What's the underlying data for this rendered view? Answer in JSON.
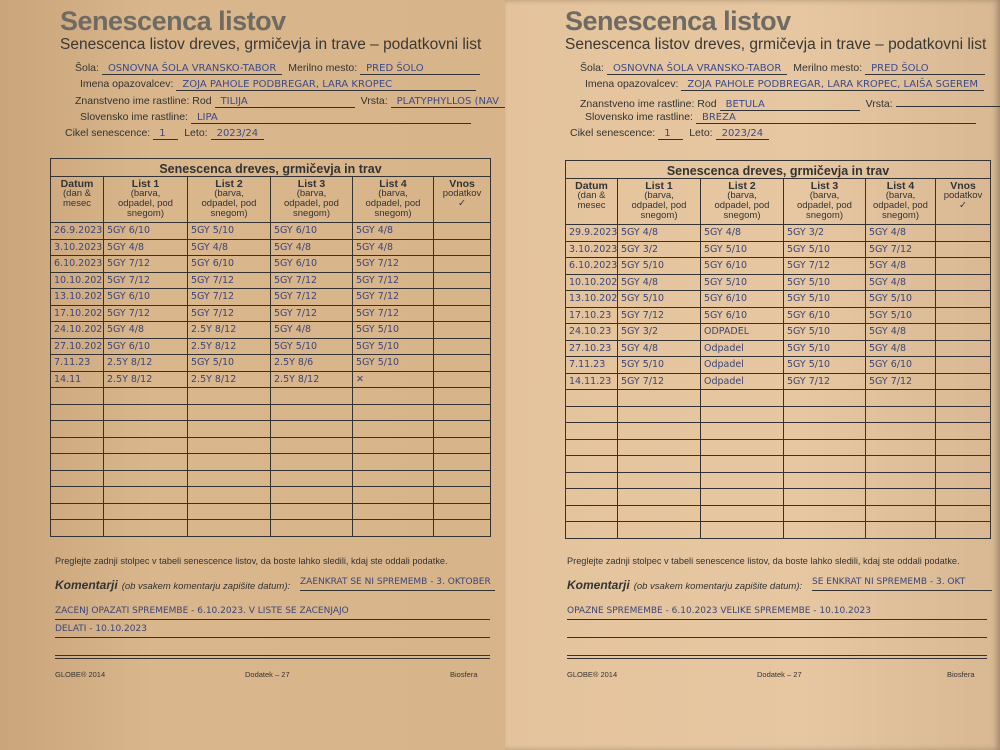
{
  "form": {
    "title": "Senescenca listov",
    "subtitle": "Senescenca listov dreves, grmičevja in trave – podatkovni list",
    "labels": {
      "sola": "Šola:",
      "merilno": "Merilno mesto:",
      "imena": "Imena opazovalcev:",
      "znanstveno": "Znanstveno ime rastline: Rod",
      "vrsta": "Vrsta:",
      "slovensko": "Slovensko ime rastline:",
      "cikel": "Cikel senescence:",
      "leto": "Leto:"
    },
    "table_caption": "Senescenca dreves, grmičevja in trav",
    "columns": [
      "Datum|(dan &|mesec",
      "List 1|(barva,|odpadel, pod|snegom)",
      "List 2|(barva,|odpadel, pod|snegom)",
      "List 3|(barva,|odpadel, pod|snegom)",
      "List 4|(barva,|odpadel, pod|snegom)",
      "Vnos|podatkov|✓"
    ],
    "instruction": "Preglejte zadnji stolpec v tabeli senescence listov, da boste lahko sledili, kdaj ste oddali podatke.",
    "komentarji_label": "Komentarji",
    "komentarji_hint": "(ob vsakem komentarju zapišite datum):",
    "footer": {
      "left": "GLOBE® 2014",
      "center": "Dodatek – 27",
      "right": "Biosfera"
    }
  },
  "sheets": [
    {
      "sola": "OSNOVNA ŠOLA VRANSKO-TABOR",
      "merilno": "PRED ŠOLO",
      "imena": "ZOJA PAHOLE PODBREGAR, LARA KROPEC",
      "rod": "TILIJA",
      "vrsta": "PLATYPHYLLOS (NAV",
      "slovensko": "LIPA",
      "cikel": "1",
      "leto": "2023/24",
      "rows": [
        [
          "26.9.2023",
          "5GY 6/10",
          "5GY 5/10",
          "5GY 6/10",
          "5GY 4/8",
          ""
        ],
        [
          "3.10.2023",
          "5GY 4/8",
          "5GY 4/8",
          "5GY 4/8",
          "5GY 4/8",
          ""
        ],
        [
          "6.10.2023",
          "5GY 7/12",
          "5GY 6/10",
          "5GY 6/10",
          "5GY 7/12",
          ""
        ],
        [
          "10.10.2023",
          "5GY 7/12",
          "5GY 7/12",
          "5GY 7/12",
          "5GY 7/12",
          ""
        ],
        [
          "13.10.2023",
          "5GY 6/10",
          "5GY 7/12",
          "5GY 7/12",
          "5GY 7/12",
          ""
        ],
        [
          "17.10.2023",
          "5GY 7/12",
          "5GY 7/12",
          "5GY 7/12",
          "5GY 7/12",
          ""
        ],
        [
          "24.10.2023",
          "5GY 4/8",
          "2.5Y 8/12",
          "5GY 4/8",
          "5GY 5/10",
          ""
        ],
        [
          "27.10.2023",
          "5GY 6/10",
          "2.5Y 8/12",
          "5GY 5/10",
          "5GY 5/10",
          ""
        ],
        [
          "7.11.23",
          "2.5Y 8/12",
          "5GY 5/10",
          "2.5Y 8/6",
          "5GY 5/10",
          ""
        ],
        [
          "14.11",
          "2.5Y 8/12",
          "2.5Y 8/12",
          "2.5Y 8/12",
          "✕",
          ""
        ]
      ],
      "komentar": [
        "ZAENKRAT ŠE NI SPREMEMB - 3. OKTOBER",
        "ZAČENJ OPAZATI SPREMEMBE - 6.10.2023. V LISTE SE ZAČENJAJO",
        "DELATI - 10.10.2023",
        ""
      ]
    },
    {
      "sola": "OSNOVNA ŠOLA VRANSKO-TABOR",
      "merilno": "PRED ŠOLO",
      "imena": "ZOJA PAHOLE PODBREGAR, LARA KROPEC, LAIŠA SGEREM",
      "rod": "BETULA",
      "vrsta": "",
      "slovensko": "BREZA",
      "cikel": "1",
      "leto": "2023/24",
      "rows": [
        [
          "29.9.2023",
          "5GY 4/8",
          "5GY 4/8",
          "5GY 3/2",
          "5GY 4/8",
          ""
        ],
        [
          "3.10.2023",
          "5GY 3/2",
          "5GY 5/10",
          "5GY 5/10",
          "5GY 7/12",
          ""
        ],
        [
          "6.10.2023",
          "5GY 5/10",
          "5GY 6/10",
          "5GY 7/12",
          "5GY 4/8",
          ""
        ],
        [
          "10.10.2023",
          "5GY 4/8",
          "5GY 5/10",
          "5GY 5/10",
          "5GY 4/8",
          ""
        ],
        [
          "13.10.2023",
          "5GY 5/10",
          "5GY 6/10",
          "5GY 5/10",
          "5GY 5/10",
          ""
        ],
        [
          "17.10.23",
          "5GY 7/12",
          "5GY 6/10",
          "5GY 6/10",
          "5GY 5/10",
          ""
        ],
        [
          "24.10.23",
          "5GY 3/2",
          "ODPADEL",
          "5GY 5/10",
          "5GY 4/8",
          ""
        ],
        [
          "27.10.23",
          "5GY 4/8",
          "Odpadel",
          "5GY 5/10",
          "5GY 4/8",
          ""
        ],
        [
          "7.11.23",
          "5GY 5/10",
          "Odpadel",
          "5GY 5/10",
          "5GY 6/10",
          ""
        ],
        [
          "14.11.23",
          "5GY 7/12",
          "Odpadel",
          "5GY 7/12",
          "5GY 7/12",
          ""
        ]
      ],
      "komentar": [
        "ŠE ENKRAT NI SPREMEMB - 3. OKT",
        "OPAZNE SPREMEMBE - 6.10.2023 VELIKE SPREMEMBE - 10.10.2023",
        "",
        ""
      ]
    }
  ]
}
